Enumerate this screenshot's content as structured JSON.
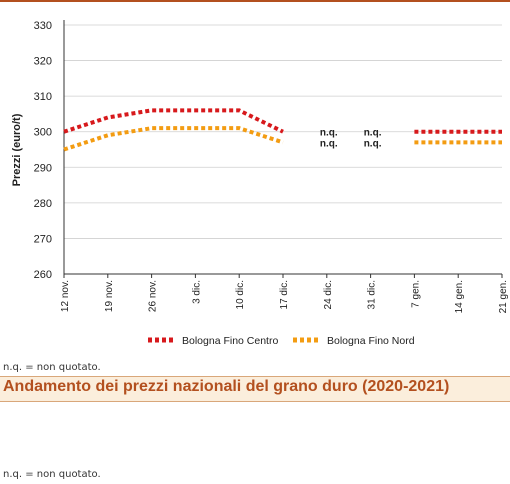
{
  "chart_data": {
    "type": "line",
    "title": "Andamento dei prezzi nazionali del grano duro (2020-2021)",
    "xlabel": "",
    "ylabel": "Prezzi (euro/t)",
    "ylim": [
      260,
      330
    ],
    "yticks": [
      260,
      270,
      280,
      290,
      300,
      310,
      320,
      330
    ],
    "categories": [
      "12 nov.",
      "19 nov.",
      "26 nov.",
      "3 dic.",
      "10 dic.",
      "17 dic.",
      "24 dic.",
      "31 dic.",
      "7 gen.",
      "14 gen.",
      "21 gen."
    ],
    "series": [
      {
        "name": "Bologna Fino Centro",
        "color": "#d7191c",
        "values": [
          300,
          304,
          306,
          306,
          306,
          300,
          null,
          null,
          300,
          300,
          300
        ]
      },
      {
        "name": "Bologna Fino Nord",
        "color": "#f39c12",
        "values": [
          295,
          299,
          301,
          301,
          301,
          297,
          null,
          null,
          297,
          297,
          297
        ]
      }
    ],
    "annotations": [
      {
        "category": "24 dic.",
        "series": "Bologna Fino Centro",
        "text": "n.q."
      },
      {
        "category": "31 dic.",
        "series": "Bologna Fino Centro",
        "text": "n.q."
      },
      {
        "category": "24 dic.",
        "series": "Bologna Fino Nord",
        "text": "n.q."
      },
      {
        "category": "31 dic.",
        "series": "Bologna Fino Nord",
        "text": "n.q."
      }
    ],
    "grid": true,
    "legend": "bottom"
  },
  "note_top": "n.q. = non quotato.",
  "headline": "Andamento dei prezzi nazionali del grano duro (2020-2021)",
  "note_bottom": "n.q. = non quotato."
}
